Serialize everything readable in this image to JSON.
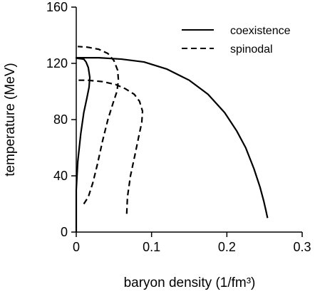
{
  "chart_data": {
    "type": "line",
    "xlabel": "baryon density (1/fm³)",
    "ylabel": "temperature (MeV)",
    "xlim": [
      0,
      0.3
    ],
    "ylim": [
      0,
      160
    ],
    "xticks": [
      "0",
      "0.1",
      "0.2",
      "0.3"
    ],
    "yticks": [
      "0",
      "40",
      "80",
      "120",
      "160"
    ],
    "legend_position": "top-right",
    "series": [
      {
        "name": "coexistence",
        "style": "solid",
        "color": "#000000",
        "points": [
          [
            0.0,
            0
          ],
          [
            0.0,
            30
          ],
          [
            0.002,
            50
          ],
          [
            0.006,
            70
          ],
          [
            0.01,
            85
          ],
          [
            0.014,
            95
          ],
          [
            0.017,
            103
          ],
          [
            0.018,
            110
          ],
          [
            0.016,
            117
          ],
          [
            0.013,
            121
          ],
          [
            0.01,
            123
          ],
          [
            0.002,
            123.5
          ],
          [
            0.0,
            124
          ],
          [
            0.03,
            124
          ],
          [
            0.06,
            123
          ],
          [
            0.09,
            121
          ],
          [
            0.12,
            116
          ],
          [
            0.15,
            108
          ],
          [
            0.175,
            98
          ],
          [
            0.197,
            85
          ],
          [
            0.213,
            72
          ],
          [
            0.225,
            60
          ],
          [
            0.236,
            45
          ],
          [
            0.244,
            32
          ],
          [
            0.249,
            22
          ],
          [
            0.252,
            15
          ],
          [
            0.254,
            10
          ]
        ]
      },
      {
        "name": "spinodal",
        "style": "dashed",
        "color": "#000000",
        "branches": [
          [
            [
              0.01,
              20
            ],
            [
              0.016,
              25
            ],
            [
              0.022,
              35
            ],
            [
              0.028,
              48
            ],
            [
              0.035,
              65
            ],
            [
              0.042,
              80
            ],
            [
              0.049,
              92
            ],
            [
              0.054,
              100
            ],
            [
              0.056,
              108
            ],
            [
              0.055,
              115
            ],
            [
              0.05,
              122
            ],
            [
              0.042,
              127
            ],
            [
              0.03,
              130
            ],
            [
              0.015,
              131.5
            ],
            [
              0.002,
              132
            ]
          ],
          [
            [
              0.067,
              13
            ],
            [
              0.068,
              25
            ],
            [
              0.072,
              40
            ],
            [
              0.078,
              55
            ],
            [
              0.083,
              68
            ],
            [
              0.087,
              78
            ],
            [
              0.088,
              86
            ],
            [
              0.084,
              93
            ],
            [
              0.077,
              98
            ],
            [
              0.065,
              102
            ],
            [
              0.052,
              105
            ],
            [
              0.035,
              107
            ],
            [
              0.015,
              108
            ],
            [
              0.002,
              108
            ]
          ]
        ]
      }
    ]
  }
}
